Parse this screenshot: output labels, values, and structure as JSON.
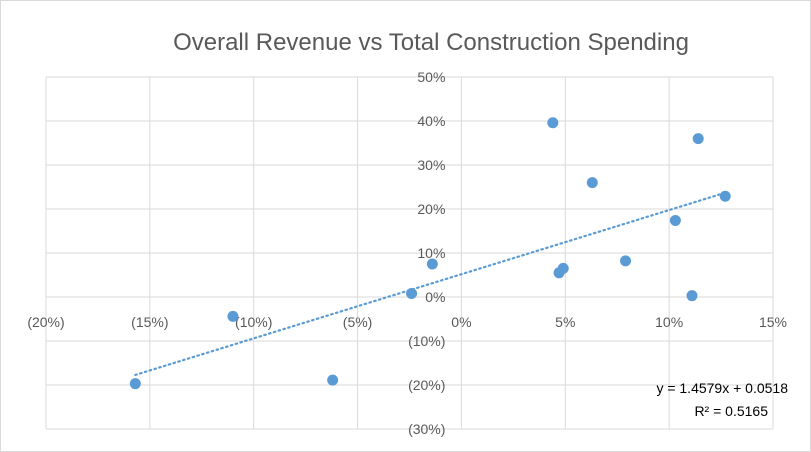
{
  "chart_data": {
    "type": "scatter",
    "title": "Overall Revenue vs Total Construction Spending",
    "xlim": [
      -0.2,
      0.15
    ],
    "ylim": [
      -0.3,
      0.5
    ],
    "x_ticks": [
      {
        "value": -0.2,
        "label": "(20%)"
      },
      {
        "value": -0.15,
        "label": "(15%)"
      },
      {
        "value": -0.1,
        "label": "(10%)"
      },
      {
        "value": -0.05,
        "label": "(5%)"
      },
      {
        "value": 0.0,
        "label": "0%"
      },
      {
        "value": 0.05,
        "label": "5%"
      },
      {
        "value": 0.1,
        "label": "10%"
      },
      {
        "value": 0.15,
        "label": "15%"
      }
    ],
    "y_ticks": [
      {
        "value": 0.5,
        "label": "50%"
      },
      {
        "value": 0.4,
        "label": "40%"
      },
      {
        "value": 0.3,
        "label": "30%"
      },
      {
        "value": 0.2,
        "label": "20%"
      },
      {
        "value": 0.1,
        "label": "10%"
      },
      {
        "value": 0.0,
        "label": "0%"
      },
      {
        "value": -0.1,
        "label": "(10%)"
      },
      {
        "value": -0.2,
        "label": "(20%)"
      },
      {
        "value": -0.3,
        "label": "(30%)"
      }
    ],
    "grid": true,
    "series": [
      {
        "points": [
          {
            "x": -0.157,
            "y": -0.197
          },
          {
            "x": -0.11,
            "y": -0.044
          },
          {
            "x": -0.062,
            "y": -0.189
          },
          {
            "x": -0.024,
            "y": 0.008
          },
          {
            "x": -0.014,
            "y": 0.075
          },
          {
            "x": 0.044,
            "y": 0.396
          },
          {
            "x": 0.047,
            "y": 0.055
          },
          {
            "x": 0.049,
            "y": 0.065
          },
          {
            "x": 0.063,
            "y": 0.26
          },
          {
            "x": 0.079,
            "y": 0.082
          },
          {
            "x": 0.103,
            "y": 0.174
          },
          {
            "x": 0.111,
            "y": 0.003
          },
          {
            "x": 0.114,
            "y": 0.36
          },
          {
            "x": 0.127,
            "y": 0.229
          }
        ]
      }
    ],
    "trendline": {
      "type": "linear",
      "slope": 1.4579,
      "intercept": 0.0518,
      "x_range": [
        -0.157,
        0.127
      ],
      "equation_label": "y = 1.4579x + 0.0518",
      "r2_label": "R² = 0.5165",
      "label_position": "bottom-right"
    },
    "colors": {
      "point": "#5b9bd5",
      "trendline": "#5b9bd5",
      "grid": "#d9d9d9",
      "text": "#595959"
    }
  }
}
